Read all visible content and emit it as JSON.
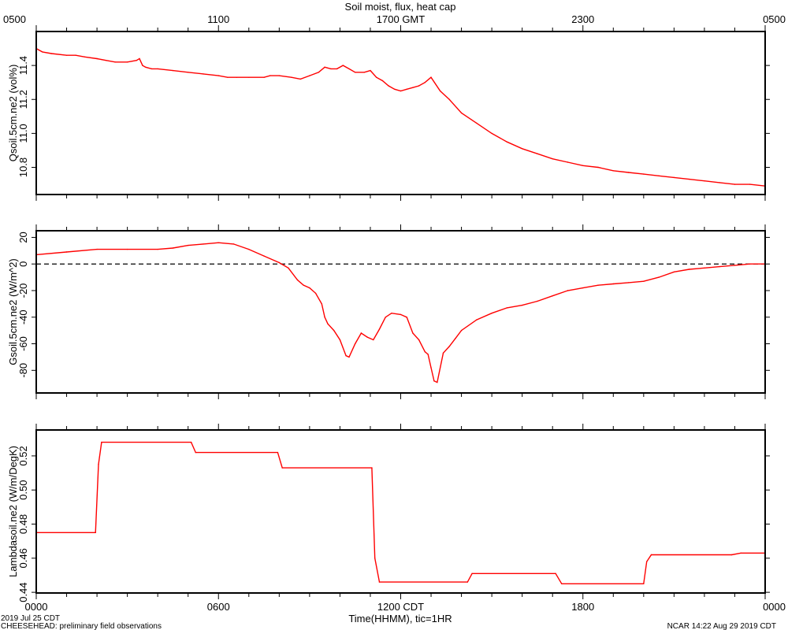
{
  "figure": {
    "title": "Soil moist, flux, heat cap",
    "bottom_left_lines": [
      "2019 Jul 25 CDT",
      "CHEESEHEAD: preliminary field observations"
    ],
    "bottom_right": "NCAR 14:22 Aug 29 2019 CDT",
    "xlabel": "Time(HHMM), tic=1HR"
  },
  "axes": {
    "top_tick_labels": [
      "0500",
      "1100",
      "1700 GMT",
      "2300",
      "0500"
    ],
    "bottom_tick_labels": [
      "0000",
      "0600",
      "1200 CDT",
      "1800",
      "0000"
    ],
    "x_range_hours": [
      0,
      24
    ]
  },
  "colors": {
    "series": "#ff0000",
    "frame": "#000000",
    "zero_line": "#000000"
  },
  "chart_data": [
    {
      "type": "line",
      "ylabel": "Qsoil.5cm.ne2 (vol%)",
      "ylim": [
        10.64,
        11.6
      ],
      "yticks": [
        10.8,
        11.0,
        11.2,
        11.4
      ],
      "ytick_labels": [
        "10.8",
        "11.0",
        "11.2",
        "11.4"
      ],
      "series": [
        {
          "x": [
            0,
            0.2,
            0.5,
            1.0,
            1.3,
            1.6,
            2.0,
            2.3,
            2.6,
            3.0,
            3.3,
            3.4,
            3.5,
            3.6,
            3.8,
            4.0,
            4.5,
            5.0,
            5.5,
            6.0,
            6.3,
            6.6,
            7.0,
            7.5,
            7.7,
            8.0,
            8.4,
            8.7,
            9.0,
            9.3,
            9.5,
            9.7,
            9.9,
            10.1,
            10.3,
            10.5,
            10.8,
            11.0,
            11.2,
            11.4,
            11.6,
            11.8,
            12.0,
            12.2,
            12.4,
            12.6,
            12.8,
            13.0,
            13.3,
            13.6,
            14.0,
            14.5,
            15.0,
            15.5,
            16.0,
            16.5,
            17.0,
            17.5,
            18.0,
            18.5,
            19.0,
            19.5,
            20.0,
            20.5,
            21.0,
            21.5,
            22.0,
            22.5,
            23.0,
            23.5,
            24.0
          ],
          "values": [
            11.5,
            11.48,
            11.47,
            11.46,
            11.46,
            11.45,
            11.44,
            11.43,
            11.42,
            11.42,
            11.43,
            11.44,
            11.4,
            11.39,
            11.38,
            11.38,
            11.37,
            11.36,
            11.35,
            11.34,
            11.33,
            11.33,
            11.33,
            11.33,
            11.34,
            11.34,
            11.33,
            11.32,
            11.34,
            11.36,
            11.39,
            11.38,
            11.38,
            11.4,
            11.38,
            11.36,
            11.36,
            11.37,
            11.33,
            11.31,
            11.28,
            11.26,
            11.25,
            11.26,
            11.27,
            11.28,
            11.3,
            11.33,
            11.25,
            11.2,
            11.12,
            11.06,
            11.0,
            10.95,
            10.91,
            10.88,
            10.85,
            10.83,
            10.81,
            10.8,
            10.78,
            10.77,
            10.76,
            10.75,
            10.74,
            10.73,
            10.72,
            10.71,
            10.7,
            10.7,
            10.69
          ]
        }
      ]
    },
    {
      "type": "line",
      "ylabel": "Gsoil.5cm.ne2 (W/m^2)",
      "ylim": [
        -97,
        25
      ],
      "yticks": [
        -80,
        -60,
        -40,
        -20,
        0,
        20
      ],
      "ytick_labels": [
        "-80",
        "-60",
        "-40",
        "-20",
        "0",
        "20"
      ],
      "zero_line": true,
      "series": [
        {
          "x": [
            0,
            1.0,
            2.0,
            3.0,
            4.0,
            4.5,
            5.0,
            5.5,
            6.0,
            6.5,
            7.0,
            7.5,
            8.0,
            8.3,
            8.6,
            8.8,
            9.0,
            9.2,
            9.4,
            9.5,
            9.6,
            9.8,
            10.0,
            10.2,
            10.3,
            10.5,
            10.7,
            10.9,
            11.1,
            11.3,
            11.5,
            11.7,
            12.0,
            12.2,
            12.4,
            12.6,
            12.8,
            12.9,
            13.0,
            13.1,
            13.2,
            13.4,
            13.6,
            13.8,
            14.0,
            14.5,
            15.0,
            15.5,
            16.0,
            16.5,
            17.0,
            17.5,
            18.0,
            18.5,
            19.0,
            19.5,
            20.0,
            20.5,
            21.0,
            21.5,
            22.0,
            22.5,
            23.0,
            23.5,
            24.0
          ],
          "values": [
            7,
            9,
            11,
            11,
            11,
            12,
            14,
            15,
            16,
            15,
            11,
            6,
            1,
            -3,
            -12,
            -16,
            -18,
            -22,
            -30,
            -40,
            -45,
            -50,
            -57,
            -69,
            -70,
            -60,
            -52,
            -55,
            -57,
            -49,
            -40,
            -37,
            -38,
            -40,
            -52,
            -57,
            -66,
            -68,
            -78,
            -88,
            -89,
            -67,
            -62,
            -56,
            -50,
            -42,
            -37,
            -33,
            -31,
            -28,
            -24,
            -20,
            -18,
            -16,
            -15,
            -14,
            -13,
            -10,
            -6,
            -4,
            -3,
            -2,
            -1,
            0,
            0
          ]
        }
      ]
    },
    {
      "type": "line",
      "ylabel": "Lambdasoil.ne2 (W/m/DegK)",
      "ylim": [
        0.4396,
        0.5352
      ],
      "yticks": [
        0.44,
        0.46,
        0.48,
        0.5,
        0.52
      ],
      "ytick_labels": [
        "0.44",
        "0.46",
        "0.48",
        "0.50",
        "0.52"
      ],
      "series": [
        {
          "x": [
            0,
            1.95,
            2.05,
            2.15,
            5.1,
            5.25,
            7.95,
            8.1,
            11.05,
            11.15,
            11.3,
            14.2,
            14.35,
            17.1,
            17.3,
            20.0,
            20.1,
            20.25,
            22.9,
            23.2,
            24.0
          ],
          "values": [
            0.475,
            0.475,
            0.515,
            0.528,
            0.528,
            0.522,
            0.522,
            0.513,
            0.513,
            0.46,
            0.446,
            0.446,
            0.451,
            0.451,
            0.445,
            0.445,
            0.458,
            0.462,
            0.462,
            0.463,
            0.463
          ]
        }
      ]
    }
  ]
}
